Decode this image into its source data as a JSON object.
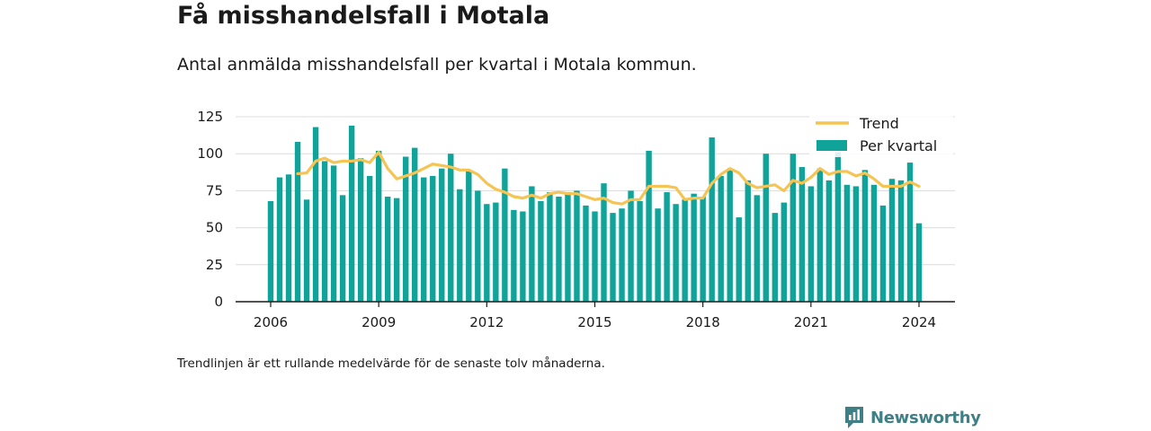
{
  "colors": {
    "bar": "#10a39a",
    "trend": "#f5c452",
    "grid": "#dcdcdc",
    "axis": "#1a1a1a",
    "logo": "#3f7f86"
  },
  "logo": {
    "text": "Newsworthy",
    "icon": "newsworthy-logo-icon"
  },
  "chart_data": {
    "type": "bar",
    "title": "Få misshandelsfall i Motala",
    "subtitle": "Antal anmälda misshandelsfall per kvartal i Motala kommun.",
    "footnote": "Trendlinjen är ett rullande medelvärde för de senaste tolv månaderna.",
    "xlabel": "",
    "ylabel": "",
    "ylim": [
      0,
      125
    ],
    "yticks": [
      "0",
      "25",
      "50",
      "75",
      "100",
      "125"
    ],
    "ytick_values": [
      0,
      25,
      50,
      75,
      100,
      125
    ],
    "xticks": [
      "2006",
      "2009",
      "2012",
      "2015",
      "2018",
      "2021",
      "2024"
    ],
    "xtick_values": [
      2006,
      2009,
      2012,
      2015,
      2018,
      2021,
      2024
    ],
    "grid": true,
    "legend": {
      "position": "top-right",
      "entries": [
        "Trend",
        "Per kvartal"
      ]
    },
    "x_start": "2006 Q1",
    "series": [
      {
        "name": "Per kvartal",
        "kind": "bar",
        "values": [
          68,
          84,
          86,
          108,
          69,
          118,
          95,
          92,
          72,
          119,
          97,
          85,
          102,
          71,
          70,
          98,
          104,
          84,
          85,
          90,
          100,
          76,
          88,
          75,
          66,
          67,
          90,
          62,
          61,
          78,
          68,
          74,
          71,
          74,
          75,
          65,
          61,
          80,
          60,
          63,
          75,
          68,
          102,
          63,
          74,
          66,
          69,
          73,
          71,
          111,
          85,
          89,
          57,
          82,
          72,
          100,
          60,
          67,
          100,
          91,
          78,
          90,
          82,
          101,
          79,
          78,
          89,
          79,
          65,
          83,
          82,
          94,
          53
        ]
      },
      {
        "name": "Trend",
        "kind": "line",
        "values": [
          null,
          null,
          null,
          86.5,
          87,
          95,
          97,
          94,
          95,
          95,
          96,
          94,
          101,
          90,
          83,
          85,
          87,
          90,
          93,
          92,
          91,
          89,
          89,
          86,
          80,
          76,
          74,
          71,
          70,
          72,
          70,
          73,
          74,
          73,
          73,
          71,
          69,
          70,
          67,
          66,
          69,
          69,
          78,
          78,
          78,
          77,
          69,
          70,
          70,
          80,
          86,
          90,
          87,
          80,
          77,
          78,
          79,
          75,
          82,
          80,
          84,
          90,
          86,
          88,
          88,
          85,
          87,
          83,
          78,
          78,
          78,
          81,
          78
        ]
      }
    ]
  }
}
